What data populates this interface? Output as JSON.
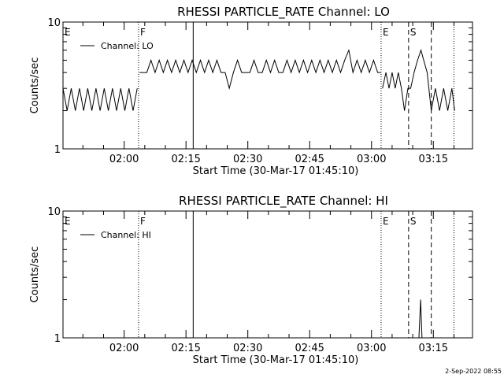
{
  "footer": {
    "timestamp": "2-Sep-2022 08:55"
  },
  "chart_data": [
    {
      "type": "line",
      "title": "RHESSI PARTICLE_RATE Channel: LO",
      "xlabel": "Start Time (30-Mar-17 01:45:10)",
      "ylabel": "Counts/sec",
      "y_scale": "log",
      "ylim": [
        1,
        10
      ],
      "y_ticks": [
        {
          "v": 1,
          "label": "1"
        },
        {
          "v": 10,
          "label": "10"
        }
      ],
      "xlim": [
        "01:45:10",
        "03:24:30"
      ],
      "x_ticks": [
        "02:00",
        "02:15",
        "02:30",
        "02:45",
        "03:00",
        "03:15"
      ],
      "legend": {
        "label": "Channel: LO",
        "position": "top-left"
      },
      "grid": false,
      "markers": [
        {
          "time": "01:45:10",
          "label": "E",
          "style": "dotted"
        },
        {
          "time": "02:03:30",
          "label": "F",
          "style": "dotted"
        },
        {
          "time": "02:16:45",
          "label": "",
          "style": "solid"
        },
        {
          "time": "03:02:20",
          "label": "E",
          "style": "dotted"
        },
        {
          "time": "03:09:00",
          "label": "S",
          "style": "dashed"
        },
        {
          "time": "03:14:30",
          "label": "",
          "style": "dashed"
        },
        {
          "time": "03:20:00",
          "label": "",
          "style": "dotted"
        }
      ],
      "series": [
        {
          "name": "Channel: LO",
          "segments": [
            [
              {
                "t": "01:45:10",
                "y": 3.0
              },
              {
                "t": "01:46:10",
                "y": 2.0
              },
              {
                "t": "01:47:10",
                "y": 3.0
              },
              {
                "t": "01:48:10",
                "y": 2.0
              },
              {
                "t": "01:49:10",
                "y": 3.0
              },
              {
                "t": "01:50:10",
                "y": 2.0
              },
              {
                "t": "01:51:10",
                "y": 3.0
              },
              {
                "t": "01:52:10",
                "y": 2.0
              },
              {
                "t": "01:53:10",
                "y": 3.0
              },
              {
                "t": "01:54:10",
                "y": 2.0
              },
              {
                "t": "01:55:10",
                "y": 3.0
              },
              {
                "t": "01:56:10",
                "y": 2.0
              },
              {
                "t": "01:57:10",
                "y": 3.0
              },
              {
                "t": "01:58:10",
                "y": 2.0
              },
              {
                "t": "01:59:10",
                "y": 3.0
              },
              {
                "t": "02:00:10",
                "y": 2.0
              },
              {
                "t": "02:01:10",
                "y": 3.0
              },
              {
                "t": "02:02:10",
                "y": 2.0
              },
              {
                "t": "02:03:10",
                "y": 3.0
              }
            ],
            [
              {
                "t": "02:03:45",
                "y": 4.0
              },
              {
                "t": "02:05:30",
                "y": 4.0
              },
              {
                "t": "02:06:30",
                "y": 5.0
              },
              {
                "t": "02:07:30",
                "y": 4.0
              },
              {
                "t": "02:08:30",
                "y": 5.0
              },
              {
                "t": "02:09:30",
                "y": 4.0
              },
              {
                "t": "02:10:30",
                "y": 5.0
              },
              {
                "t": "02:11:30",
                "y": 4.0
              },
              {
                "t": "02:12:30",
                "y": 5.0
              },
              {
                "t": "02:13:30",
                "y": 4.0
              },
              {
                "t": "02:14:30",
                "y": 5.0
              },
              {
                "t": "02:15:30",
                "y": 4.0
              },
              {
                "t": "02:16:30",
                "y": 5.0
              },
              {
                "t": "02:17:30",
                "y": 4.0
              },
              {
                "t": "02:18:30",
                "y": 5.0
              },
              {
                "t": "02:19:30",
                "y": 4.0
              },
              {
                "t": "02:20:30",
                "y": 5.0
              },
              {
                "t": "02:21:30",
                "y": 4.0
              },
              {
                "t": "02:22:30",
                "y": 5.0
              },
              {
                "t": "02:23:30",
                "y": 4.0
              },
              {
                "t": "02:24:30",
                "y": 4.0
              },
              {
                "t": "02:25:30",
                "y": 3.0
              },
              {
                "t": "02:26:30",
                "y": 4.0
              },
              {
                "t": "02:27:30",
                "y": 5.0
              },
              {
                "t": "02:28:30",
                "y": 4.0
              },
              {
                "t": "02:29:30",
                "y": 4.0
              },
              {
                "t": "02:30:30",
                "y": 4.0
              },
              {
                "t": "02:31:30",
                "y": 5.0
              },
              {
                "t": "02:32:30",
                "y": 4.0
              },
              {
                "t": "02:33:30",
                "y": 4.0
              },
              {
                "t": "02:34:30",
                "y": 5.0
              },
              {
                "t": "02:35:30",
                "y": 4.0
              },
              {
                "t": "02:36:30",
                "y": 5.0
              },
              {
                "t": "02:37:30",
                "y": 4.0
              },
              {
                "t": "02:38:30",
                "y": 4.0
              },
              {
                "t": "02:39:30",
                "y": 5.0
              },
              {
                "t": "02:40:30",
                "y": 4.0
              },
              {
                "t": "02:41:30",
                "y": 5.0
              },
              {
                "t": "02:42:30",
                "y": 4.0
              },
              {
                "t": "02:43:30",
                "y": 5.0
              },
              {
                "t": "02:44:30",
                "y": 4.0
              },
              {
                "t": "02:45:30",
                "y": 5.0
              },
              {
                "t": "02:46:30",
                "y": 4.0
              },
              {
                "t": "02:47:30",
                "y": 5.0
              },
              {
                "t": "02:48:30",
                "y": 4.0
              },
              {
                "t": "02:49:30",
                "y": 5.0
              },
              {
                "t": "02:50:30",
                "y": 4.0
              },
              {
                "t": "02:51:30",
                "y": 5.0
              },
              {
                "t": "02:52:30",
                "y": 4.0
              },
              {
                "t": "02:53:30",
                "y": 5.0
              },
              {
                "t": "02:54:30",
                "y": 6.0
              },
              {
                "t": "02:55:30",
                "y": 4.0
              },
              {
                "t": "02:56:30",
                "y": 5.0
              },
              {
                "t": "02:57:30",
                "y": 4.0
              },
              {
                "t": "02:58:30",
                "y": 5.0
              },
              {
                "t": "02:59:30",
                "y": 4.0
              },
              {
                "t": "03:00:30",
                "y": 5.0
              },
              {
                "t": "03:01:30",
                "y": 4.0
              },
              {
                "t": "03:02:15",
                "y": 4.0
              }
            ],
            [
              {
                "t": "03:02:40",
                "y": 3.0
              },
              {
                "t": "03:03:30",
                "y": 4.0
              },
              {
                "t": "03:04:15",
                "y": 3.0
              },
              {
                "t": "03:05:00",
                "y": 4.0
              },
              {
                "t": "03:05:45",
                "y": 3.0
              },
              {
                "t": "03:06:30",
                "y": 4.0
              },
              {
                "t": "03:07:15",
                "y": 3.0
              },
              {
                "t": "03:08:00",
                "y": 2.0
              },
              {
                "t": "03:08:50",
                "y": 3.0
              },
              {
                "t": "03:09:30",
                "y": 3.0
              },
              {
                "t": "03:10:20",
                "y": 4.0
              },
              {
                "t": "03:11:10",
                "y": 5.0
              },
              {
                "t": "03:12:00",
                "y": 6.0
              },
              {
                "t": "03:12:40",
                "y": 5.0
              },
              {
                "t": "03:13:30",
                "y": 4.0
              },
              {
                "t": "03:14:30",
                "y": 2.0
              },
              {
                "t": "03:15:30",
                "y": 3.0
              },
              {
                "t": "03:16:30",
                "y": 2.0
              },
              {
                "t": "03:17:30",
                "y": 3.0
              },
              {
                "t": "03:18:30",
                "y": 2.0
              },
              {
                "t": "03:19:30",
                "y": 3.0
              },
              {
                "t": "03:20:10",
                "y": 2.0
              }
            ]
          ]
        }
      ]
    },
    {
      "type": "line",
      "title": "RHESSI PARTICLE_RATE Channel: HI",
      "xlabel": "Start Time (30-Mar-17 01:45:10)",
      "ylabel": "Counts/sec",
      "y_scale": "log",
      "ylim": [
        1,
        10
      ],
      "y_ticks": [
        {
          "v": 1,
          "label": "1"
        },
        {
          "v": 10,
          "label": "10"
        }
      ],
      "xlim": [
        "01:45:10",
        "03:24:30"
      ],
      "x_ticks": [
        "02:00",
        "02:15",
        "02:30",
        "02:45",
        "03:00",
        "03:15"
      ],
      "legend": {
        "label": "Channel: HI",
        "position": "top-left"
      },
      "grid": false,
      "markers": [
        {
          "time": "01:45:10",
          "label": "E",
          "style": "dotted"
        },
        {
          "time": "02:03:30",
          "label": "F",
          "style": "dotted"
        },
        {
          "time": "02:16:45",
          "label": "",
          "style": "solid"
        },
        {
          "time": "03:02:20",
          "label": "E",
          "style": "dotted"
        },
        {
          "time": "03:09:00",
          "label": "S",
          "style": "dashed"
        },
        {
          "time": "03:14:30",
          "label": "",
          "style": "dashed"
        },
        {
          "time": "03:20:00",
          "label": "",
          "style": "dotted"
        }
      ],
      "series": [
        {
          "name": "Channel: HI",
          "segments": [
            [
              {
                "t": "03:11:30",
                "y": 1.0
              },
              {
                "t": "03:11:55",
                "y": 2.0
              },
              {
                "t": "03:12:15",
                "y": 1.0
              }
            ]
          ]
        }
      ]
    }
  ]
}
